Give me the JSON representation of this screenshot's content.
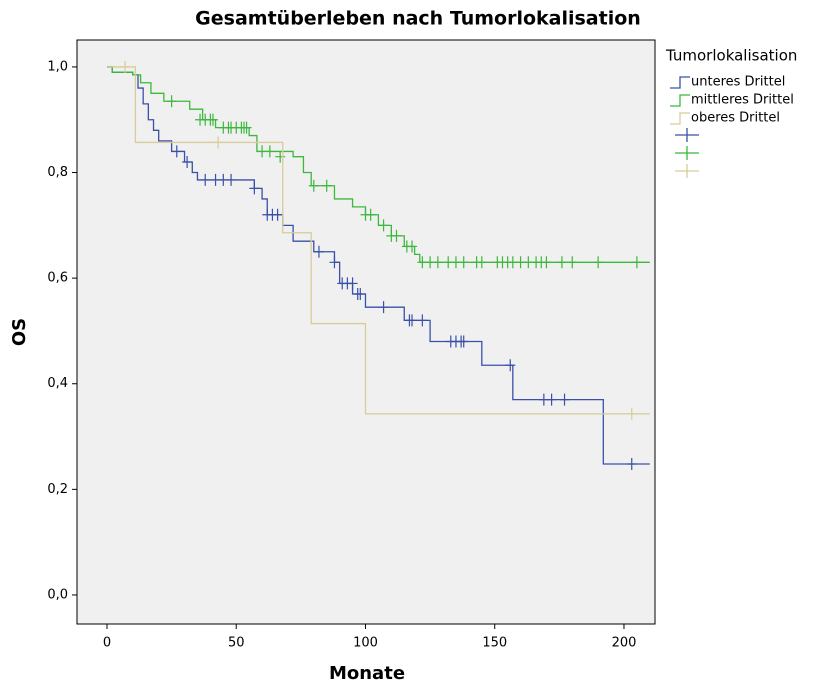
{
  "chart_data": {
    "type": "kaplan-meier",
    "title": "Gesamtüberleben nach Tumorlokalisation",
    "x_label": "Monate",
    "y_label": "OS",
    "legend_title": "Tumorlokalisation",
    "xlim": [
      -11.6,
      212
    ],
    "ylim": [
      -0.055,
      1.051
    ],
    "xticks": [
      0,
      50,
      100,
      150,
      200
    ],
    "yticks": [
      {
        "value": 0,
        "label": "0,0"
      },
      {
        "value": 0.2,
        "label": "0,2"
      },
      {
        "value": 0.4,
        "label": "0,4"
      },
      {
        "value": 0.6,
        "label": "0,6"
      },
      {
        "value": 0.8,
        "label": "0,8"
      },
      {
        "value": 1,
        "label": "1,0"
      }
    ],
    "series": [
      {
        "name": "unteres Drittel",
        "color": "#3a50a8",
        "x": [
          0,
          2,
          10,
          12,
          14,
          16,
          18,
          20,
          25,
          30,
          33,
          35,
          57,
          60,
          62,
          68,
          72,
          80,
          88,
          90,
          95,
          100,
          115,
          125,
          145,
          157,
          192,
          210
        ],
        "values": [
          1.0,
          0.99,
          0.985,
          0.96,
          0.93,
          0.9,
          0.88,
          0.86,
          0.84,
          0.82,
          0.8,
          0.786,
          0.77,
          0.75,
          0.72,
          0.7,
          0.67,
          0.65,
          0.63,
          0.59,
          0.57,
          0.545,
          0.52,
          0.48,
          0.435,
          0.37,
          0.248,
          0.248
        ],
        "censor_x": [
          27,
          31,
          38,
          42,
          45,
          48,
          57,
          62,
          64,
          66,
          82,
          88,
          91,
          93,
          95,
          97,
          98,
          107,
          117,
          118,
          122,
          133,
          135,
          137,
          138,
          156,
          169,
          172,
          177,
          203
        ],
        "censor_values": [
          0.84,
          0.82,
          0.786,
          0.786,
          0.786,
          0.786,
          0.77,
          0.72,
          0.72,
          0.72,
          0.65,
          0.63,
          0.59,
          0.59,
          0.59,
          0.57,
          0.57,
          0.545,
          0.52,
          0.52,
          0.52,
          0.48,
          0.48,
          0.48,
          0.48,
          0.435,
          0.37,
          0.37,
          0.37,
          0.248
        ]
      },
      {
        "name": "mittleres Drittel",
        "color": "#3cb83c",
        "x": [
          0,
          2,
          10,
          13,
          17,
          22,
          32,
          37,
          42,
          55,
          58,
          72,
          76,
          79,
          88,
          95,
          100,
          105,
          110,
          115,
          119,
          121,
          210
        ],
        "values": [
          1.0,
          0.99,
          0.985,
          0.97,
          0.95,
          0.935,
          0.92,
          0.9,
          0.885,
          0.87,
          0.84,
          0.83,
          0.8,
          0.775,
          0.75,
          0.735,
          0.72,
          0.7,
          0.68,
          0.66,
          0.645,
          0.63,
          0.63
        ],
        "censor_x": [
          25,
          36,
          38,
          40,
          41,
          45,
          47,
          48,
          50,
          52,
          53,
          54,
          60,
          63,
          67,
          80,
          85,
          100,
          102,
          107,
          110,
          112,
          116,
          118,
          122,
          125,
          128,
          132,
          135,
          138,
          143,
          145,
          151,
          153,
          155,
          157,
          160,
          163,
          166,
          168,
          170,
          176,
          180,
          190,
          205
        ],
        "censor_values": [
          0.935,
          0.9,
          0.9,
          0.9,
          0.9,
          0.885,
          0.885,
          0.885,
          0.885,
          0.885,
          0.885,
          0.885,
          0.84,
          0.84,
          0.83,
          0.775,
          0.775,
          0.72,
          0.72,
          0.7,
          0.68,
          0.68,
          0.66,
          0.66,
          0.63,
          0.63,
          0.63,
          0.63,
          0.63,
          0.63,
          0.63,
          0.63,
          0.63,
          0.63,
          0.63,
          0.63,
          0.63,
          0.63,
          0.63,
          0.63,
          0.63,
          0.63,
          0.63,
          0.63,
          0.63
        ]
      },
      {
        "name": "oberes Drittel",
        "color": "#d8cc9a",
        "x": [
          0,
          11,
          68,
          79,
          100,
          210
        ],
        "values": [
          1.0,
          0.857,
          0.686,
          0.514,
          0.343,
          0.343
        ],
        "censor_x": [
          7,
          43,
          203
        ],
        "censor_values": [
          1.0,
          0.857,
          0.343
        ]
      }
    ]
  }
}
